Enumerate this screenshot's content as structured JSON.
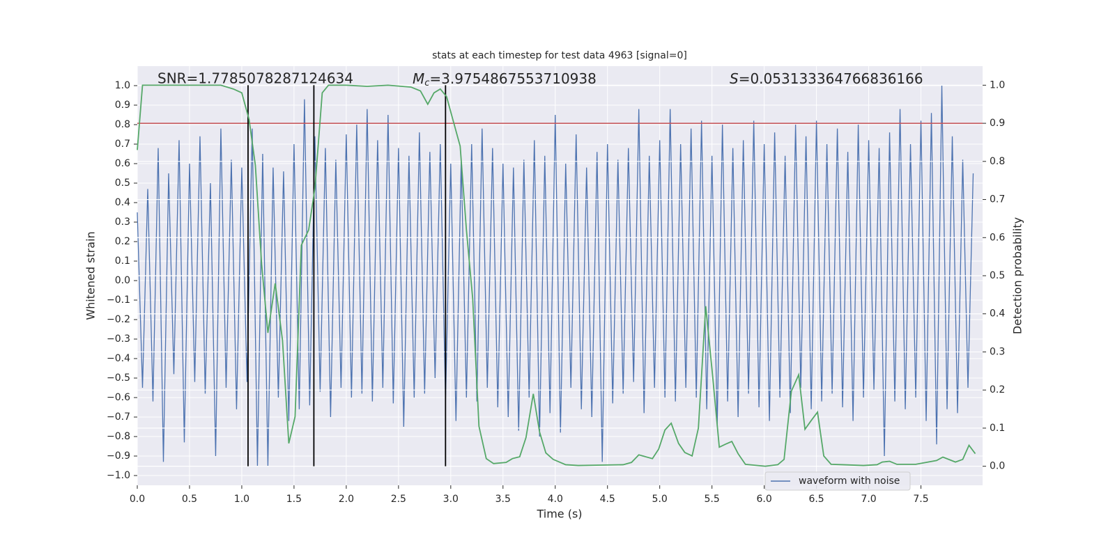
{
  "chart_data": {
    "type": "line",
    "title": "stats at each timestep for test data 4963 [signal=0]",
    "xlabel": "Time (s)",
    "ylabel": "Whitened strain",
    "y2label": "Detection probability",
    "annotations": {
      "snr": "SNR=1.7785078287124634",
      "mc": {
        "symbol": "M",
        "sub": "c",
        "rest": "=3.9754867553710938"
      },
      "s": {
        "symbol": "S",
        "rest": "=0.053133364766836166"
      }
    },
    "xlim": [
      0,
      8.09
    ],
    "ylim": [
      -1.05,
      1.1
    ],
    "y2lim": [
      -0.05,
      1.05
    ],
    "xticks": [
      {
        "value": 0,
        "label": "0.0"
      },
      {
        "value": 0.5,
        "label": "0.5"
      },
      {
        "value": 1,
        "label": "1.0"
      },
      {
        "value": 1.5,
        "label": "1.5"
      },
      {
        "value": 2,
        "label": "2.0"
      },
      {
        "value": 2.5,
        "label": "2.5"
      },
      {
        "value": 3,
        "label": "3.0"
      },
      {
        "value": 3.5,
        "label": "3.5"
      },
      {
        "value": 4,
        "label": "4.0"
      },
      {
        "value": 4.5,
        "label": "4.5"
      },
      {
        "value": 5,
        "label": "5.0"
      },
      {
        "value": 5.5,
        "label": "5.5"
      },
      {
        "value": 6,
        "label": "6.0"
      },
      {
        "value": 6.5,
        "label": "6.5"
      },
      {
        "value": 7,
        "label": "7.0"
      },
      {
        "value": 7.5,
        "label": "7.5"
      }
    ],
    "yticks": [
      {
        "value": -1,
        "label": "−1.0"
      },
      {
        "value": -0.9,
        "label": "−0.9"
      },
      {
        "value": -0.8,
        "label": "−0.8"
      },
      {
        "value": -0.7,
        "label": "−0.7"
      },
      {
        "value": -0.6,
        "label": "−0.6"
      },
      {
        "value": -0.5,
        "label": "−0.5"
      },
      {
        "value": -0.4,
        "label": "−0.4"
      },
      {
        "value": -0.3,
        "label": "−0.3"
      },
      {
        "value": -0.2,
        "label": "−0.2"
      },
      {
        "value": -0.1,
        "label": "−0.1"
      },
      {
        "value": 0,
        "label": "0.0"
      },
      {
        "value": 0.1,
        "label": "0.1"
      },
      {
        "value": 0.2,
        "label": "0.2"
      },
      {
        "value": 0.3,
        "label": "0.3"
      },
      {
        "value": 0.4,
        "label": "0.4"
      },
      {
        "value": 0.5,
        "label": "0.5"
      },
      {
        "value": 0.6,
        "label": "0.6"
      },
      {
        "value": 0.7,
        "label": "0.7"
      },
      {
        "value": 0.8,
        "label": "0.8"
      },
      {
        "value": 0.9,
        "label": "0.9"
      },
      {
        "value": 1,
        "label": "1.0"
      }
    ],
    "y2ticks": [
      {
        "value": 0,
        "label": "0.0"
      },
      {
        "value": 0.1,
        "label": "0.1"
      },
      {
        "value": 0.2,
        "label": "0.2"
      },
      {
        "value": 0.3,
        "label": "0.3"
      },
      {
        "value": 0.4,
        "label": "0.4"
      },
      {
        "value": 0.5,
        "label": "0.5"
      },
      {
        "value": 0.6,
        "label": "0.6"
      },
      {
        "value": 0.7,
        "label": "0.7"
      },
      {
        "value": 0.8,
        "label": "0.8"
      },
      {
        "value": 0.9,
        "label": "0.9"
      },
      {
        "value": 1,
        "label": "1.0"
      }
    ],
    "grid": true,
    "legend": "lower right",
    "threshold": {
      "value": 0.9,
      "axis": "y2",
      "color": "#c44e52"
    },
    "vlines": {
      "x": [
        1.06,
        1.69,
        2.95
      ],
      "from": 0,
      "to": 1,
      "axis": "y2",
      "color": "#000000"
    },
    "series": [
      {
        "name": "waveform with noise",
        "color": "#4c72b0",
        "x": [
          0,
          0.05,
          0.1,
          0.15,
          0.2,
          0.25,
          0.3,
          0.35,
          0.4,
          0.45,
          0.5,
          0.55,
          0.6,
          0.65,
          0.7,
          0.75,
          0.8,
          0.85,
          0.9,
          0.95,
          1,
          1.05,
          1.1,
          1.15,
          1.2,
          1.25,
          1.3,
          1.35,
          1.4,
          1.45,
          1.5,
          1.55,
          1.6,
          1.65,
          1.7,
          1.75,
          1.8,
          1.85,
          1.9,
          1.95,
          2,
          2.05,
          2.1,
          2.15,
          2.2,
          2.25,
          2.3,
          2.35,
          2.4,
          2.45,
          2.5,
          2.55,
          2.6,
          2.65,
          2.7,
          2.75,
          2.8,
          2.85,
          2.9,
          2.95,
          3,
          3.05,
          3.1,
          3.15,
          3.2,
          3.25,
          3.3,
          3.35,
          3.4,
          3.45,
          3.5,
          3.55,
          3.6,
          3.65,
          3.7,
          3.75,
          3.8,
          3.85,
          3.9,
          3.95,
          4,
          4.05,
          4.1,
          4.15,
          4.2,
          4.25,
          4.3,
          4.35,
          4.4,
          4.45,
          4.5,
          4.55,
          4.6,
          4.65,
          4.7,
          4.75,
          4.8,
          4.85,
          4.9,
          4.95,
          5,
          5.05,
          5.1,
          5.15,
          5.2,
          5.25,
          5.3,
          5.35,
          5.4,
          5.45,
          5.5,
          5.55,
          5.6,
          5.65,
          5.7,
          5.75,
          5.8,
          5.85,
          5.9,
          5.95,
          6,
          6.05,
          6.1,
          6.15,
          6.2,
          6.25,
          6.3,
          6.35,
          6.4,
          6.45,
          6.5,
          6.55,
          6.6,
          6.65,
          6.7,
          6.75,
          6.8,
          6.85,
          6.9,
          6.95,
          7,
          7.05,
          7.1,
          7.15,
          7.2,
          7.25,
          7.3,
          7.35,
          7.4,
          7.45,
          7.5,
          7.55,
          7.6,
          7.65,
          7.7,
          7.75,
          7.8,
          7.85,
          7.9,
          7.95,
          8
        ],
        "values": [
          0.35,
          -0.55,
          0.47,
          -0.62,
          0.68,
          -0.93,
          0.55,
          -0.48,
          0.72,
          -0.83,
          0.6,
          -0.52,
          0.74,
          -0.58,
          0.5,
          -0.9,
          0.78,
          -0.55,
          0.62,
          -0.66,
          0.58,
          -0.52,
          0.78,
          -0.95,
          0.65,
          -0.95,
          0.58,
          -0.6,
          0.56,
          -0.72,
          0.7,
          -0.66,
          0.93,
          -0.64,
          0.74,
          -0.57,
          0.68,
          -0.7,
          0.62,
          -0.55,
          0.75,
          -0.6,
          0.8,
          -0.58,
          0.88,
          -0.62,
          0.72,
          -0.55,
          0.85,
          -0.63,
          0.68,
          -0.75,
          0.64,
          -0.6,
          0.76,
          -0.58,
          0.66,
          -0.5,
          0.7,
          -0.62,
          0.6,
          -0.72,
          0.62,
          -0.6,
          0.7,
          -0.62,
          0.78,
          -0.55,
          0.68,
          -0.65,
          0.6,
          -0.7,
          0.58,
          -0.77,
          0.62,
          -0.6,
          0.72,
          -0.8,
          0.64,
          -0.68,
          0.85,
          -0.78,
          0.6,
          -0.55,
          0.75,
          -0.66,
          0.58,
          -0.7,
          0.66,
          -0.93,
          0.7,
          -0.63,
          0.62,
          -0.58,
          0.68,
          -0.52,
          0.88,
          -0.68,
          0.64,
          -0.55,
          0.72,
          -0.6,
          0.88,
          -0.62,
          0.7,
          -0.55,
          0.78,
          -0.6,
          0.82,
          -0.66,
          0.64,
          -0.75,
          0.8,
          -0.62,
          0.68,
          -0.7,
          0.72,
          -0.58,
          0.82,
          -0.65,
          0.7,
          -0.72,
          0.76,
          -0.6,
          0.64,
          -0.68,
          0.8,
          -0.55,
          0.74,
          -0.66,
          0.82,
          -0.62,
          0.7,
          -0.58,
          0.78,
          -0.65,
          0.66,
          -0.72,
          0.8,
          -0.6,
          0.72,
          -0.56,
          0.68,
          -0.9,
          0.76,
          -0.62,
          0.88,
          -0.66,
          0.7,
          -0.6,
          0.82,
          -0.72,
          0.86,
          -0.84,
          1,
          -0.66,
          0.74,
          -0.68,
          0.62,
          -0.55,
          0.55
        ]
      },
      {
        "color": "#55a868",
        "axis": "y2",
        "x": [
          0,
          0.05,
          0.1,
          0.2,
          0.4,
          0.6,
          0.8,
          0.92,
          1,
          1.07,
          1.13,
          1.19,
          1.25,
          1.32,
          1.39,
          1.45,
          1.51,
          1.57,
          1.64,
          1.7,
          1.77,
          1.83,
          2,
          2.2,
          2.4,
          2.62,
          2.71,
          2.78,
          2.84,
          2.9,
          2.96,
          3.02,
          3.09,
          3.15,
          3.21,
          3.27,
          3.34,
          3.41,
          3.53,
          3.59,
          3.66,
          3.72,
          3.79,
          3.85,
          3.91,
          3.98,
          4.1,
          4.22,
          4.65,
          4.73,
          4.8,
          4.93,
          4.99,
          5.05,
          5.11,
          5.18,
          5.24,
          5.31,
          5.37,
          5.44,
          5.5,
          5.57,
          5.63,
          5.69,
          5.75,
          5.82,
          6.01,
          6.13,
          6.19,
          6.26,
          6.33,
          6.39,
          6.45,
          6.51,
          6.57,
          6.64,
          6.75,
          6.95,
          7.08,
          7.13,
          7.2,
          7.27,
          7.45,
          7.65,
          7.71,
          7.83,
          7.9,
          7.96,
          8.02
        ],
        "values": [
          0.83,
          1,
          1,
          1,
          1,
          1,
          1,
          0.99,
          0.98,
          0.91,
          0.79,
          0.53,
          0.35,
          0.48,
          0.33,
          0.06,
          0.13,
          0.58,
          0.62,
          0.73,
          0.98,
          1,
          1,
          0.997,
          1,
          0.995,
          0.985,
          0.95,
          0.98,
          0.99,
          0.97,
          0.91,
          0.84,
          0.62,
          0.44,
          0.105,
          0.02,
          0.007,
          0.01,
          0.02,
          0.025,
          0.075,
          0.19,
          0.09,
          0.035,
          0.018,
          0.004,
          0.002,
          0.004,
          0.01,
          0.03,
          0.02,
          0.045,
          0.095,
          0.113,
          0.06,
          0.036,
          0.027,
          0.1,
          0.42,
          0.255,
          0.05,
          0.058,
          0.065,
          0.033,
          0.005,
          0,
          0.004,
          0.018,
          0.197,
          0.24,
          0.097,
          0.12,
          0.142,
          0.027,
          0.005,
          0.004,
          0.002,
          0.004,
          0.011,
          0.013,
          0.005,
          0.005,
          0.015,
          0.024,
          0.011,
          0.018,
          0.055,
          0.033
        ]
      }
    ]
  }
}
